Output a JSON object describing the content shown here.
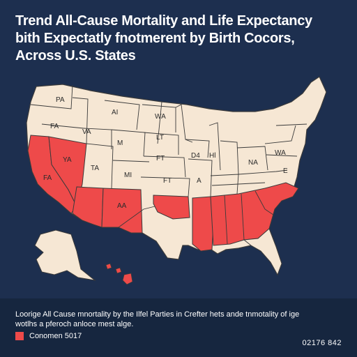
{
  "title": {
    "line1": "Trend All-Cause Mortality and Life Expectancy",
    "line2": "bith Expectatly fnotmerent by Birth Cocors,",
    "line3": "Across U.S. States"
  },
  "map": {
    "colors": {
      "background": "#1d2f4f",
      "land": "#f6e7d4",
      "highlight": "#ee4a4a",
      "border": "#3a3a3a"
    },
    "labels": [
      "PA",
      "FA",
      "VA",
      "M",
      "AI",
      "WA",
      "LT",
      "TA",
      "MI",
      "FT",
      "FT",
      "A",
      "D4",
      "Hl",
      "NA",
      "WA",
      "E",
      "YA",
      "FA",
      "AA"
    ]
  },
  "caption": {
    "line1": "Loorige All Cause mnortality by the Ilfel Parties in Crefter hets ande tnmotality of ige",
    "line2": "wotlhs a pferoch anloce mest alge."
  },
  "legend": {
    "label": "Conomen 5017",
    "color": "#ee4a4a"
  },
  "code": "02176 842"
}
